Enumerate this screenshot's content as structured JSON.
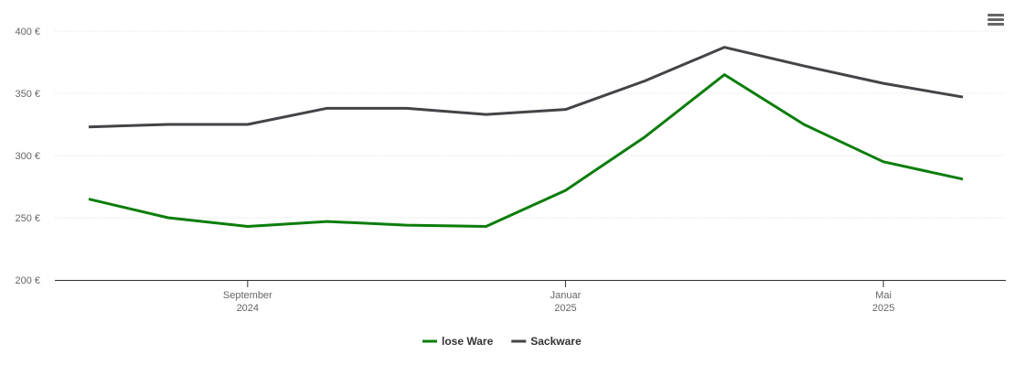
{
  "chart_data": {
    "type": "line",
    "x": [
      "2024-07",
      "2024-08",
      "2024-09",
      "2024-10",
      "2024-11",
      "2024-12",
      "2025-01",
      "2025-02",
      "2025-03",
      "2025-04",
      "2025-05",
      "2025-06"
    ],
    "series": [
      {
        "name": "lose Ware",
        "color": "#0b7d0b",
        "values": [
          265,
          250,
          243,
          247,
          244,
          243,
          272,
          315,
          365,
          325,
          295,
          281
        ]
      },
      {
        "name": "Sackware",
        "color": "#434348",
        "values": [
          323,
          325,
          325,
          338,
          338,
          333,
          337,
          360,
          387,
          372,
          358,
          347
        ]
      }
    ],
    "xlim": [
      "2024-07",
      "2025-06"
    ],
    "xticks": [
      {
        "value": "2024-09",
        "label": "September 2024"
      },
      {
        "value": "2025-01",
        "label": "Januar 2025"
      },
      {
        "value": "2025-05",
        "label": "Mai 2025"
      }
    ],
    "ylim": [
      200,
      400
    ],
    "yticks": [
      {
        "value": 200,
        "label": "200 €"
      },
      {
        "value": 250,
        "label": "250 €"
      },
      {
        "value": 300,
        "label": "300 €"
      },
      {
        "value": 350,
        "label": "350 €"
      },
      {
        "value": 400,
        "label": "400 €"
      }
    ],
    "grid": true,
    "legend": "bottom"
  }
}
